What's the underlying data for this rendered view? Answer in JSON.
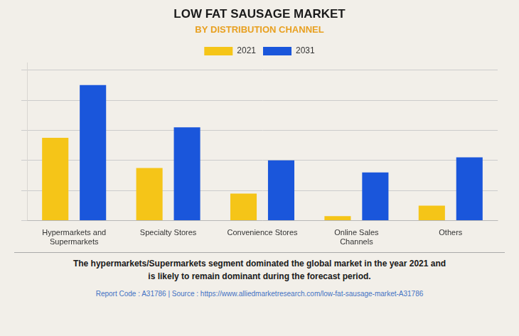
{
  "chart_data": {
    "type": "bar",
    "title": "LOW FAT SAUSAGE MARKET",
    "subtitle": "BY DISTRIBUTION CHANNEL",
    "annotations": [
      "The hypermarkets/Supermarkets segment dominated the global market in the year 2021 and\nis likely to remain dominant during the forecast period.",
      "Report Code : A31786  |  Source : https://www.alliedmarketresearch.com/low-fat-sausage-market-A31786"
    ],
    "categories": [
      "Hypermarkets and\nSupermarkets",
      "Specialty Stores",
      "Convenience Stores",
      "Online Sales\nChannels",
      "Others"
    ],
    "series": [
      {
        "name": "2021",
        "color": "#F5C518",
        "values": [
          0.55,
          0.35,
          0.18,
          0.03,
          0.1
        ]
      },
      {
        "name": "2031",
        "color": "#1A56DB",
        "values": [
          0.9,
          0.62,
          0.4,
          0.32,
          0.42
        ]
      }
    ],
    "ylim": [
      0,
      1.05
    ],
    "yticks": [
      0,
      0.2,
      0.4,
      0.6,
      0.8,
      1.0
    ],
    "grid": true,
    "legend": "top",
    "tick_labels": "x"
  }
}
